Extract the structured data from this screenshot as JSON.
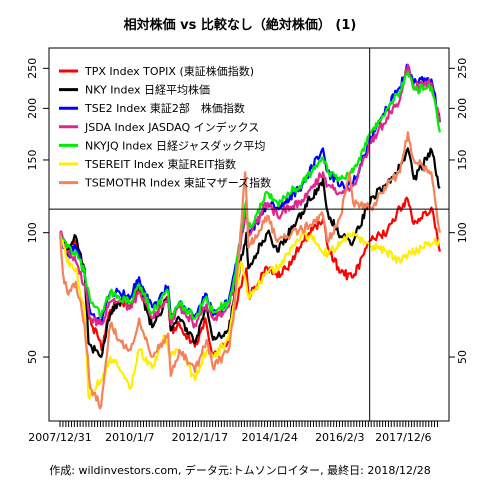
{
  "chart_data": {
    "type": "line",
    "title": "相対株価 vs 比較なし（絶対株価） (1)",
    "credit": "作成: wildinvestors.com, データ元:トムソンロイター, 最終日: 2018/12/28",
    "y_scale": "log",
    "ylim": [
      35,
      280
    ],
    "y_ticks": [
      50,
      100,
      150,
      200,
      250
    ],
    "x_tick_labels": [
      "2007/12/31",
      "2010/1/7",
      "2012/1/17",
      "2014/1/24",
      "2016/2/3",
      "2017/12/6"
    ],
    "x_tick_dates": [
      "2007-12-31",
      "2010-01-07",
      "2012-01-17",
      "2014-01-24",
      "2016-02-03",
      "2017-12-06"
    ],
    "x_start": "2007-12-31",
    "x_end": "2018-12-28",
    "crosshair": {
      "x": "2016-12-15",
      "y": 114
    },
    "legend": {
      "position": "top-left"
    },
    "series": [
      {
        "name": "TPX Index TOPIX (東証株価指数)",
        "color": "#ff0000",
        "points": [
          [
            "2007-12-31",
            100
          ],
          [
            "2008-03-15",
            90
          ],
          [
            "2008-06-15",
            95
          ],
          [
            "2008-09-15",
            80
          ],
          [
            "2008-11-01",
            62
          ],
          [
            "2009-02-15",
            55
          ],
          [
            "2009-03-15",
            52
          ],
          [
            "2009-06-15",
            65
          ],
          [
            "2009-09-15",
            68
          ],
          [
            "2010-01-15",
            66
          ],
          [
            "2010-04-15",
            75
          ],
          [
            "2010-08-30",
            62
          ],
          [
            "2011-02-15",
            70
          ],
          [
            "2011-03-15",
            58
          ],
          [
            "2011-06-15",
            60
          ],
          [
            "2011-11-25",
            53
          ],
          [
            "2012-03-15",
            62
          ],
          [
            "2012-06-04",
            50
          ],
          [
            "2012-11-15",
            55
          ],
          [
            "2013-01-15",
            65
          ],
          [
            "2013-05-22",
            82
          ],
          [
            "2013-06-15",
            70
          ],
          [
            "2013-12-31",
            82
          ],
          [
            "2014-04-15",
            78
          ],
          [
            "2014-09-15",
            85
          ],
          [
            "2014-12-31",
            95
          ],
          [
            "2015-08-10",
            108
          ],
          [
            "2015-09-30",
            92
          ],
          [
            "2016-02-12",
            80
          ],
          [
            "2016-06-24",
            78
          ],
          [
            "2016-12-31",
            96
          ],
          [
            "2017-06-15",
            100
          ],
          [
            "2017-10-31",
            115
          ],
          [
            "2018-01-23",
            120
          ],
          [
            "2018-03-26",
            105
          ],
          [
            "2018-09-28",
            115
          ],
          [
            "2018-12-28",
            90
          ]
        ]
      },
      {
        "name": "NKY Index 日経平均株価",
        "color": "#000000",
        "points": [
          [
            "2007-12-31",
            100
          ],
          [
            "2008-03-15",
            90
          ],
          [
            "2008-06-15",
            98
          ],
          [
            "2008-09-15",
            82
          ],
          [
            "2008-10-27",
            54
          ],
          [
            "2009-03-10",
            50
          ],
          [
            "2009-06-15",
            64
          ],
          [
            "2009-09-15",
            68
          ],
          [
            "2010-01-15",
            70
          ],
          [
            "2010-04-05",
            75
          ],
          [
            "2010-08-31",
            59
          ],
          [
            "2011-02-15",
            70
          ],
          [
            "2011-03-15",
            58
          ],
          [
            "2011-06-15",
            62
          ],
          [
            "2011-11-25",
            54
          ],
          [
            "2012-03-27",
            67
          ],
          [
            "2012-06-04",
            55
          ],
          [
            "2012-11-15",
            58
          ],
          [
            "2013-01-15",
            70
          ],
          [
            "2013-05-22",
            100
          ],
          [
            "2013-06-13",
            82
          ],
          [
            "2013-12-31",
            100
          ],
          [
            "2014-04-15",
            90
          ],
          [
            "2014-12-31",
            112
          ],
          [
            "2015-08-10",
            135
          ],
          [
            "2015-09-30",
            112
          ],
          [
            "2016-02-12",
            98
          ],
          [
            "2016-06-24",
            95
          ],
          [
            "2016-12-31",
            122
          ],
          [
            "2017-06-15",
            130
          ],
          [
            "2017-10-31",
            145
          ],
          [
            "2018-01-23",
            160
          ],
          [
            "2018-03-26",
            135
          ],
          [
            "2018-10-02",
            158
          ],
          [
            "2018-12-25",
            128
          ]
        ]
      },
      {
        "name": "TSE2 Index 東証2部　株価指数",
        "color": "#0000ff",
        "points": [
          [
            "2007-12-31",
            100
          ],
          [
            "2008-03-15",
            88
          ],
          [
            "2008-06-15",
            92
          ],
          [
            "2008-09-15",
            80
          ],
          [
            "2008-11-15",
            64
          ],
          [
            "2009-03-10",
            60
          ],
          [
            "2009-06-15",
            72
          ],
          [
            "2009-09-15",
            72
          ],
          [
            "2010-01-15",
            70
          ],
          [
            "2010-04-15",
            78
          ],
          [
            "2010-08-31",
            66
          ],
          [
            "2011-02-15",
            74
          ],
          [
            "2011-03-15",
            63
          ],
          [
            "2011-06-15",
            68
          ],
          [
            "2011-11-25",
            62
          ],
          [
            "2012-03-27",
            71
          ],
          [
            "2012-06-04",
            63
          ],
          [
            "2012-11-15",
            68
          ],
          [
            "2013-01-15",
            80
          ],
          [
            "2013-05-22",
            112
          ],
          [
            "2013-06-13",
            98
          ],
          [
            "2013-12-31",
            118
          ],
          [
            "2014-04-15",
            115
          ],
          [
            "2014-12-31",
            130
          ],
          [
            "2015-08-10",
            160
          ],
          [
            "2015-09-30",
            140
          ],
          [
            "2016-02-12",
            130
          ],
          [
            "2016-06-24",
            132
          ],
          [
            "2016-12-31",
            170
          ],
          [
            "2017-06-15",
            200
          ],
          [
            "2017-10-31",
            225
          ],
          [
            "2018-01-23",
            255
          ],
          [
            "2018-03-26",
            230
          ],
          [
            "2018-09-28",
            235
          ],
          [
            "2018-12-28",
            185
          ]
        ]
      },
      {
        "name": "JSDA Index JASDAQ インデックス",
        "color": "#e0288c",
        "points": [
          [
            "2007-12-31",
            100
          ],
          [
            "2008-03-15",
            90
          ],
          [
            "2008-06-15",
            85
          ],
          [
            "2008-09-15",
            75
          ],
          [
            "2008-11-15",
            62
          ],
          [
            "2009-03-10",
            60
          ],
          [
            "2009-06-15",
            68
          ],
          [
            "2009-09-15",
            68
          ],
          [
            "2010-01-15",
            66
          ],
          [
            "2010-04-15",
            72
          ],
          [
            "2010-08-31",
            62
          ],
          [
            "2011-02-15",
            70
          ],
          [
            "2011-03-15",
            60
          ],
          [
            "2011-06-15",
            66
          ],
          [
            "2011-11-25",
            60
          ],
          [
            "2012-03-27",
            67
          ],
          [
            "2012-06-04",
            62
          ],
          [
            "2012-11-15",
            66
          ],
          [
            "2013-01-15",
            75
          ],
          [
            "2013-05-22",
            115
          ],
          [
            "2013-06-13",
            98
          ],
          [
            "2013-12-31",
            118
          ],
          [
            "2014-04-15",
            110
          ],
          [
            "2014-12-31",
            120
          ],
          [
            "2015-08-10",
            140
          ],
          [
            "2015-09-30",
            130
          ],
          [
            "2016-02-12",
            125
          ],
          [
            "2016-06-24",
            130
          ],
          [
            "2016-12-31",
            165
          ],
          [
            "2017-06-15",
            190
          ],
          [
            "2017-10-31",
            210
          ],
          [
            "2018-01-23",
            255
          ],
          [
            "2018-03-26",
            225
          ],
          [
            "2018-09-28",
            230
          ],
          [
            "2018-12-28",
            185
          ]
        ]
      },
      {
        "name": "NKYJQ Index 日経ジャスダック平均",
        "color": "#00ee00",
        "points": [
          [
            "2007-12-31",
            100
          ],
          [
            "2008-03-15",
            92
          ],
          [
            "2008-06-15",
            90
          ],
          [
            "2008-09-15",
            80
          ],
          [
            "2008-11-15",
            68
          ],
          [
            "2009-03-10",
            63
          ],
          [
            "2009-06-15",
            72
          ],
          [
            "2009-09-15",
            70
          ],
          [
            "2010-01-15",
            68
          ],
          [
            "2010-04-15",
            75
          ],
          [
            "2010-08-31",
            64
          ],
          [
            "2011-02-15",
            72
          ],
          [
            "2011-03-15",
            62
          ],
          [
            "2011-06-15",
            68
          ],
          [
            "2011-11-25",
            62
          ],
          [
            "2012-03-27",
            70
          ],
          [
            "2012-06-04",
            64
          ],
          [
            "2012-11-15",
            68
          ],
          [
            "2013-01-15",
            78
          ],
          [
            "2013-05-22",
            120
          ],
          [
            "2013-06-13",
            102
          ],
          [
            "2013-12-31",
            125
          ],
          [
            "2014-04-15",
            118
          ],
          [
            "2014-12-31",
            132
          ],
          [
            "2015-08-10",
            152
          ],
          [
            "2015-09-30",
            140
          ],
          [
            "2016-02-12",
            135
          ],
          [
            "2016-06-24",
            140
          ],
          [
            "2016-12-31",
            175
          ],
          [
            "2017-06-15",
            200
          ],
          [
            "2017-10-31",
            220
          ],
          [
            "2018-01-23",
            245
          ],
          [
            "2018-03-26",
            222
          ],
          [
            "2018-09-28",
            225
          ],
          [
            "2018-12-28",
            175
          ]
        ]
      },
      {
        "name": "TSEREIT Index 東証REIT指数",
        "color": "#ffee00",
        "points": [
          [
            "2007-12-31",
            100
          ],
          [
            "2008-03-15",
            85
          ],
          [
            "2008-06-15",
            82
          ],
          [
            "2008-09-15",
            65
          ],
          [
            "2008-10-27",
            40
          ],
          [
            "2009-03-10",
            44
          ],
          [
            "2009-06-15",
            50
          ],
          [
            "2009-09-15",
            47
          ],
          [
            "2010-01-15",
            42
          ],
          [
            "2010-04-15",
            52
          ],
          [
            "2010-08-31",
            47
          ],
          [
            "2011-01-15",
            56
          ],
          [
            "2011-03-15",
            50
          ],
          [
            "2011-06-15",
            52
          ],
          [
            "2011-11-25",
            44
          ],
          [
            "2012-03-27",
            52
          ],
          [
            "2012-06-04",
            50
          ],
          [
            "2012-11-15",
            55
          ],
          [
            "2013-01-15",
            68
          ],
          [
            "2013-03-28",
            85
          ],
          [
            "2013-06-13",
            70
          ],
          [
            "2013-12-31",
            80
          ],
          [
            "2014-04-15",
            82
          ],
          [
            "2014-12-31",
            100
          ],
          [
            "2015-03-15",
            98
          ],
          [
            "2015-09-30",
            88
          ],
          [
            "2016-02-12",
            95
          ],
          [
            "2016-06-24",
            100
          ],
          [
            "2016-12-31",
            93
          ],
          [
            "2017-06-15",
            90
          ],
          [
            "2017-10-31",
            85
          ],
          [
            "2018-01-23",
            88
          ],
          [
            "2018-06-15",
            92
          ],
          [
            "2018-12-28",
            96
          ]
        ]
      },
      {
        "name": "TSEMOTHR Index 東証マザーズ指数",
        "color": "#f4825a",
        "points": [
          [
            "2007-12-31",
            100
          ],
          [
            "2008-01-31",
            80
          ],
          [
            "2008-03-15",
            72
          ],
          [
            "2008-06-15",
            76
          ],
          [
            "2008-09-15",
            60
          ],
          [
            "2008-11-15",
            42
          ],
          [
            "2009-03-10",
            38
          ],
          [
            "2009-06-15",
            60
          ],
          [
            "2009-09-15",
            55
          ],
          [
            "2010-01-15",
            52
          ],
          [
            "2010-04-15",
            62
          ],
          [
            "2010-08-31",
            50
          ],
          [
            "2011-02-15",
            57
          ],
          [
            "2011-03-15",
            45
          ],
          [
            "2011-06-15",
            52
          ],
          [
            "2011-11-25",
            46
          ],
          [
            "2012-03-27",
            55
          ],
          [
            "2012-06-04",
            47
          ],
          [
            "2012-11-15",
            52
          ],
          [
            "2013-01-15",
            65
          ],
          [
            "2013-05-10",
            140
          ],
          [
            "2013-06-13",
            92
          ],
          [
            "2013-12-31",
            110
          ],
          [
            "2014-04-15",
            95
          ],
          [
            "2014-12-31",
            102
          ],
          [
            "2015-08-10",
            110
          ],
          [
            "2015-09-30",
            95
          ],
          [
            "2016-02-12",
            110
          ],
          [
            "2016-05-15",
            140
          ],
          [
            "2016-06-24",
            118
          ],
          [
            "2016-12-31",
            115
          ],
          [
            "2017-06-15",
            130
          ],
          [
            "2017-10-31",
            140
          ],
          [
            "2018-01-23",
            175
          ],
          [
            "2018-03-26",
            150
          ],
          [
            "2018-09-28",
            140
          ],
          [
            "2018-12-28",
            100
          ]
        ]
      }
    ]
  }
}
